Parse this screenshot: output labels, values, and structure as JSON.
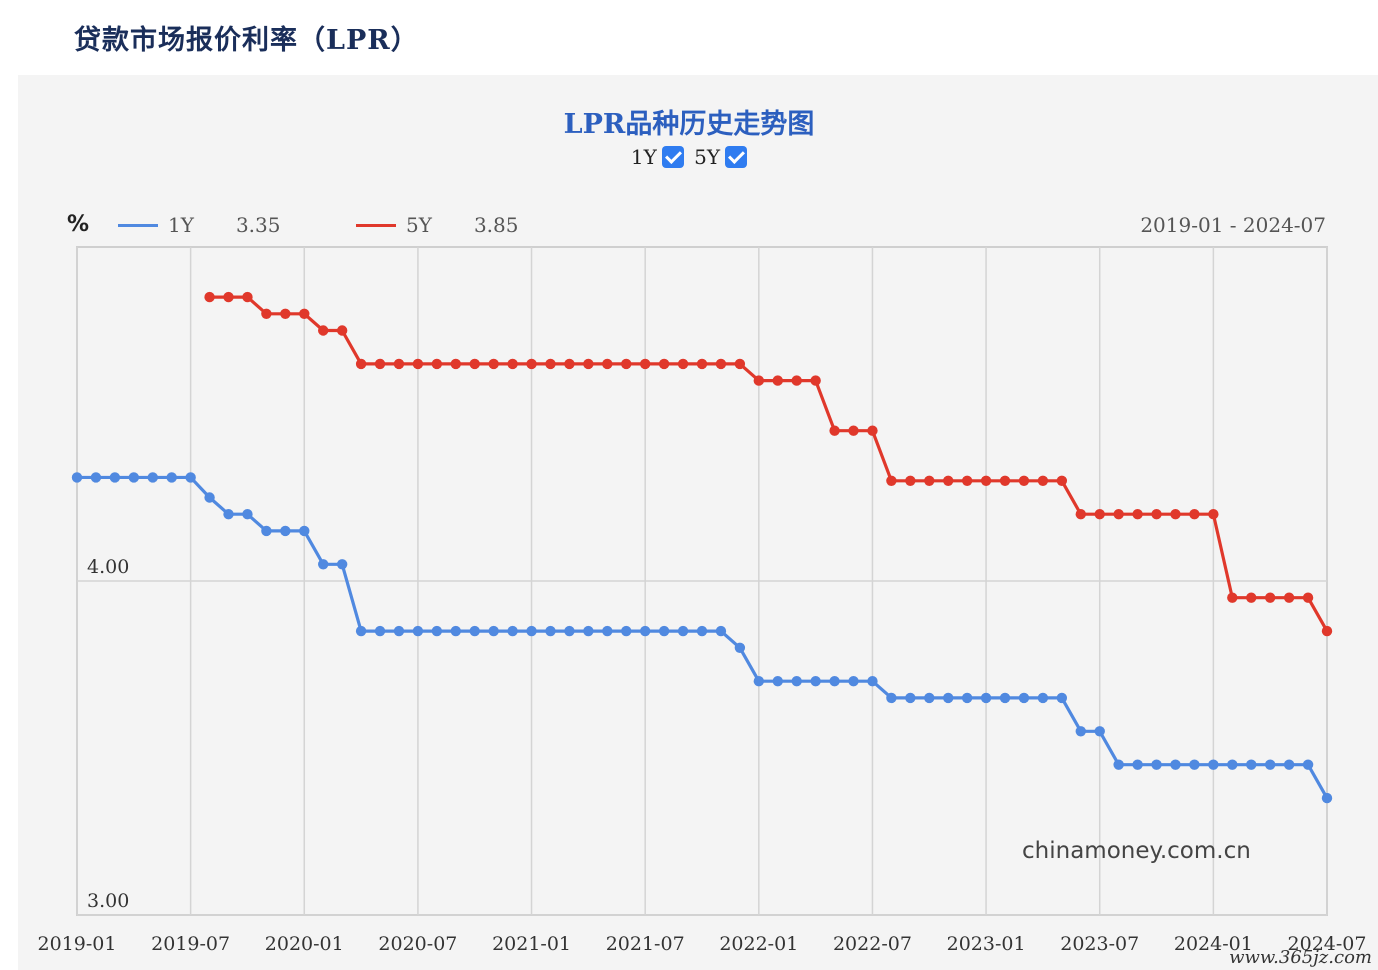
{
  "page": {
    "title": "贷款市场报价利率（LPR）"
  },
  "controls": {
    "toggle_1y": "1Y",
    "toggle_5y": "5Y"
  },
  "chart_data": {
    "type": "line",
    "title": "LPR品种历史走势图",
    "unit": "%",
    "date_range": "2019-01 - 2024-07",
    "legend_position": "top-left",
    "grid": true,
    "ylim": [
      3.0,
      5.0
    ],
    "yticks": [
      {
        "value": 3.0,
        "label": "3.00"
      },
      {
        "value": 4.0,
        "label": "4.00"
      }
    ],
    "xtick_labels": [
      "2019-01",
      "2019-07",
      "2020-01",
      "2020-07",
      "2021-01",
      "2021-07",
      "2022-01",
      "2022-07",
      "2023-01",
      "2023-07",
      "2024-01",
      "2024-07"
    ],
    "x_start": "2019-01",
    "series": [
      {
        "name": "1Y",
        "latest": "3.35",
        "color": "#5089e0",
        "values": [
          4.31,
          4.31,
          4.31,
          4.31,
          4.31,
          4.31,
          4.31,
          4.25,
          4.2,
          4.2,
          4.15,
          4.15,
          4.15,
          4.05,
          4.05,
          3.85,
          3.85,
          3.85,
          3.85,
          3.85,
          3.85,
          3.85,
          3.85,
          3.85,
          3.85,
          3.85,
          3.85,
          3.85,
          3.85,
          3.85,
          3.85,
          3.85,
          3.85,
          3.85,
          3.85,
          3.8,
          3.7,
          3.7,
          3.7,
          3.7,
          3.7,
          3.7,
          3.7,
          3.65,
          3.65,
          3.65,
          3.65,
          3.65,
          3.65,
          3.65,
          3.65,
          3.65,
          3.65,
          3.55,
          3.55,
          3.45,
          3.45,
          3.45,
          3.45,
          3.45,
          3.45,
          3.45,
          3.45,
          3.45,
          3.45,
          3.45,
          3.35
        ]
      },
      {
        "name": "5Y",
        "latest": "3.85",
        "color": "#e0382b",
        "values": [
          null,
          null,
          null,
          null,
          null,
          null,
          null,
          4.85,
          4.85,
          4.85,
          4.8,
          4.8,
          4.8,
          4.75,
          4.75,
          4.65,
          4.65,
          4.65,
          4.65,
          4.65,
          4.65,
          4.65,
          4.65,
          4.65,
          4.65,
          4.65,
          4.65,
          4.65,
          4.65,
          4.65,
          4.65,
          4.65,
          4.65,
          4.65,
          4.65,
          4.65,
          4.6,
          4.6,
          4.6,
          4.6,
          4.45,
          4.45,
          4.45,
          4.3,
          4.3,
          4.3,
          4.3,
          4.3,
          4.3,
          4.3,
          4.3,
          4.3,
          4.3,
          4.2,
          4.2,
          4.2,
          4.2,
          4.2,
          4.2,
          4.2,
          4.2,
          3.95,
          3.95,
          3.95,
          3.95,
          3.95,
          3.85
        ]
      }
    ]
  },
  "watermark": "chinamoney.com.cn",
  "site_mark": "www.365jz.com"
}
